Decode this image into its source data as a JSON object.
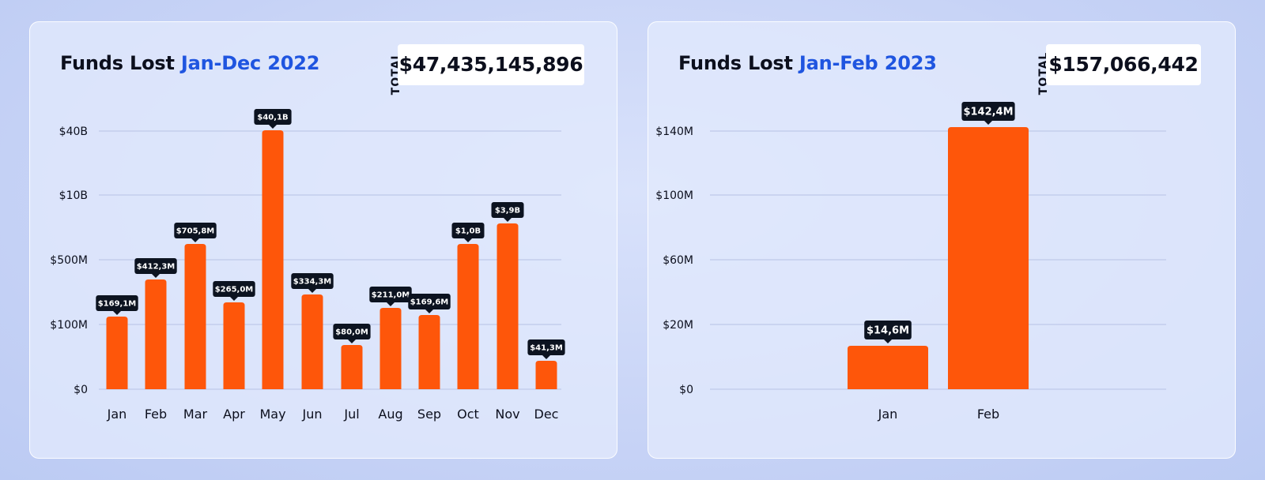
{
  "colors": {
    "bar": "#fe560a",
    "accent": "#1f55e0",
    "grid": "#b7c2e4",
    "label_bg": "#0c1320",
    "text": "#0c0f1d"
  },
  "left": {
    "title_prefix": "Funds Lost ",
    "title_highlight": "Jan-Dec 2022",
    "total_label": "TOTAL",
    "total_value": "$47,435,145,896"
  },
  "right": {
    "title_prefix": "Funds Lost ",
    "title_highlight": "Jan-Feb 2023",
    "total_label": "TOTAL",
    "total_value": "$157,066,442"
  },
  "chart_data": [
    {
      "type": "bar",
      "title": "Funds Lost Jan-Dec 2022",
      "scale": "log",
      "categories": [
        "Jan",
        "Feb",
        "Mar",
        "Apr",
        "May",
        "Jun",
        "Jul",
        "Aug",
        "Sep",
        "Oct",
        "Nov",
        "Dec"
      ],
      "values": [
        169100000,
        412300000,
        705800000,
        265000000,
        40100000000,
        334300000,
        80000000,
        211000000,
        169600000,
        1000000000,
        3900000000,
        41300000
      ],
      "data_labels": [
        "$169,1M",
        "$412,3M",
        "$705,8M",
        "$265,0M",
        "$40,1B",
        "$334,3M",
        "$80,0M",
        "$211,0M",
        "$169,6M",
        "$1,0B",
        "$3,9B",
        "$41,3M"
      ],
      "y_ticks": [
        0,
        100000000,
        500000000,
        10000000000,
        40000000000
      ],
      "y_tick_labels": [
        "$0",
        "$100M",
        "$500M",
        "$10B",
        "$40B"
      ],
      "grid": true
    },
    {
      "type": "bar",
      "title": "Funds Lost Jan-Feb 2023",
      "scale": "linear",
      "categories": [
        "Jan",
        "Feb"
      ],
      "values": [
        14600000,
        142400000
      ],
      "data_labels": [
        "$14,6M",
        "$142,4M"
      ],
      "y_ticks": [
        0,
        20000000,
        60000000,
        100000000,
        140000000
      ],
      "y_tick_labels": [
        "$0",
        "$20M",
        "$60M",
        "$100M",
        "$140M"
      ],
      "grid": true
    }
  ]
}
